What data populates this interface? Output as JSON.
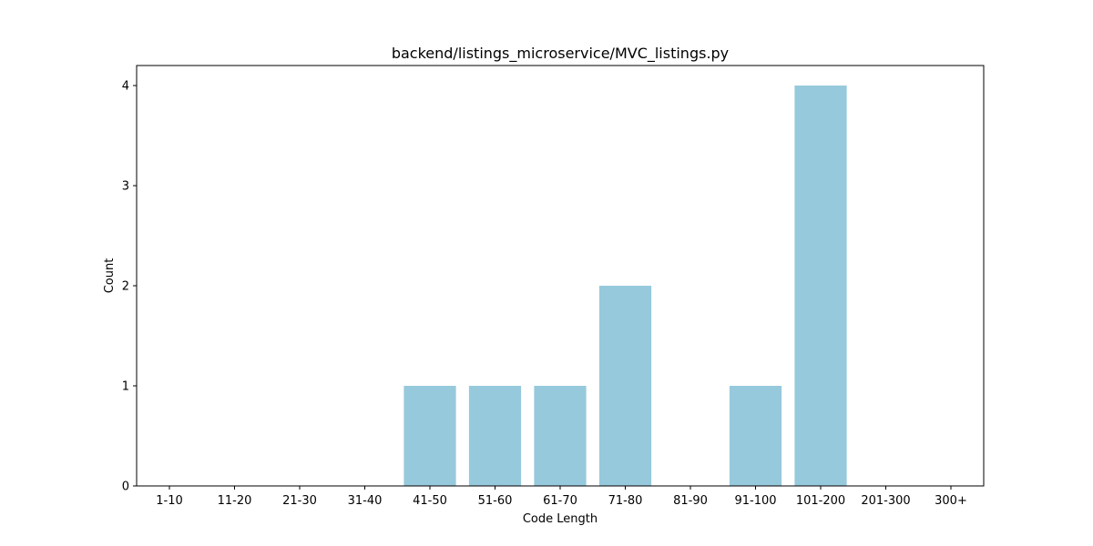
{
  "chart_data": {
    "type": "bar",
    "title": "backend/listings_microservice/MVC_listings.py",
    "xlabel": "Code Length",
    "ylabel": "Count",
    "categories": [
      "1-10",
      "11-20",
      "21-30",
      "31-40",
      "41-50",
      "51-60",
      "61-70",
      "71-80",
      "81-90",
      "91-100",
      "101-200",
      "201-300",
      "300+"
    ],
    "values": [
      0,
      0,
      0,
      0,
      1,
      1,
      1,
      2,
      0,
      1,
      4,
      0,
      0
    ],
    "ylim": [
      0,
      4.2
    ],
    "yticks": [
      "0",
      "1",
      "2",
      "3",
      "4"
    ],
    "grid": false,
    "legend": "none",
    "bar_color": "#96c9dc"
  }
}
